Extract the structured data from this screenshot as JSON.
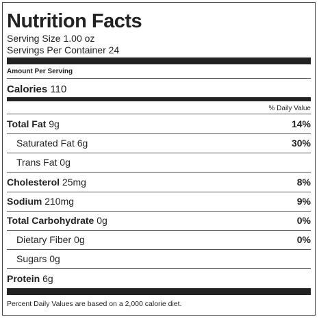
{
  "header": {
    "title": "Nutrition Facts",
    "serving_size": "Serving Size 1.00 oz",
    "servings_per_container": "Servings Per Container 24"
  },
  "amount_per_serving": "Amount Per Serving",
  "calories": {
    "label": "Calories",
    "value": "110"
  },
  "daily_value_header": "% Daily Value",
  "rows": [
    {
      "label": "Total Fat",
      "amount": "9g",
      "dv": "14%",
      "sub": false
    },
    {
      "label": "Saturated Fat",
      "amount": "6g",
      "dv": "30%",
      "sub": true
    },
    {
      "label": "Trans Fat",
      "amount": "0g",
      "dv": null,
      "sub": true
    },
    {
      "label": "Cholesterol",
      "amount": "25mg",
      "dv": "8%",
      "sub": false
    },
    {
      "label": "Sodium",
      "amount": "210mg",
      "dv": "9%",
      "sub": false
    },
    {
      "label": "Total Carbohydrate",
      "amount": "0g",
      "dv": "0%",
      "sub": false
    },
    {
      "label": "Dietary Fiber",
      "amount": "0g",
      "dv": "0%",
      "sub": true
    },
    {
      "label": "Sugars",
      "amount": "0g",
      "dv": null,
      "sub": true
    },
    {
      "label": "Protein",
      "amount": "6g",
      "dv": null,
      "sub": false
    }
  ],
  "footnote": "Percent Daily Values are based on a 2,000 calorie diet."
}
